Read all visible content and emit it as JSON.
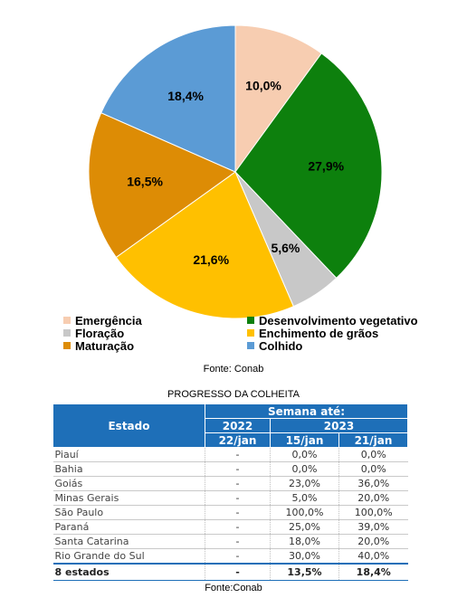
{
  "chart_data": {
    "type": "pie",
    "categories": [
      "Emergência",
      "Desenvolvimento vegetativo",
      "Floração",
      "Enchimento de grãos",
      "Maturação",
      "Colhido"
    ],
    "values": [
      10.0,
      27.9,
      5.6,
      21.6,
      16.5,
      18.4
    ],
    "value_labels": [
      "10,0%",
      "27,9%",
      "5,6%",
      "21,6%",
      "16,5%",
      "18,4%"
    ],
    "colors": [
      "#f7cdb1",
      "#0d800d",
      "#c8c8c8",
      "#ffc000",
      "#dd8c05",
      "#5b9bd5"
    ],
    "legend": "bottom"
  },
  "source_chart": "Fonte: Conab",
  "table": {
    "title": "PROGRESSO DA COLHEITA",
    "col_estado": "Estado",
    "col_semana": "Semana até:",
    "years": [
      "2022",
      "2023"
    ],
    "dates": [
      "22/jan",
      "15/jan",
      "21/jan"
    ],
    "rows": [
      {
        "estado": "Piauí",
        "v": [
          "-",
          "0,0%",
          "0,0%"
        ]
      },
      {
        "estado": "Bahia",
        "v": [
          "-",
          "0,0%",
          "0,0%"
        ]
      },
      {
        "estado": "Goiás",
        "v": [
          "-",
          "23,0%",
          "36,0%"
        ]
      },
      {
        "estado": "Minas Gerais",
        "v": [
          "-",
          "5,0%",
          "20,0%"
        ]
      },
      {
        "estado": "São Paulo",
        "v": [
          "-",
          "100,0%",
          "100,0%"
        ]
      },
      {
        "estado": "Paraná",
        "v": [
          "-",
          "25,0%",
          "39,0%"
        ]
      },
      {
        "estado": "Santa Catarina",
        "v": [
          "-",
          "18,0%",
          "20,0%"
        ]
      },
      {
        "estado": "Rio Grande do Sul",
        "v": [
          "-",
          "30,0%",
          "40,0%"
        ]
      }
    ],
    "total": {
      "estado": "8 estados",
      "v": [
        "-",
        "13,5%",
        "18,4%"
      ]
    }
  },
  "source_table": "Fonte:Conab"
}
